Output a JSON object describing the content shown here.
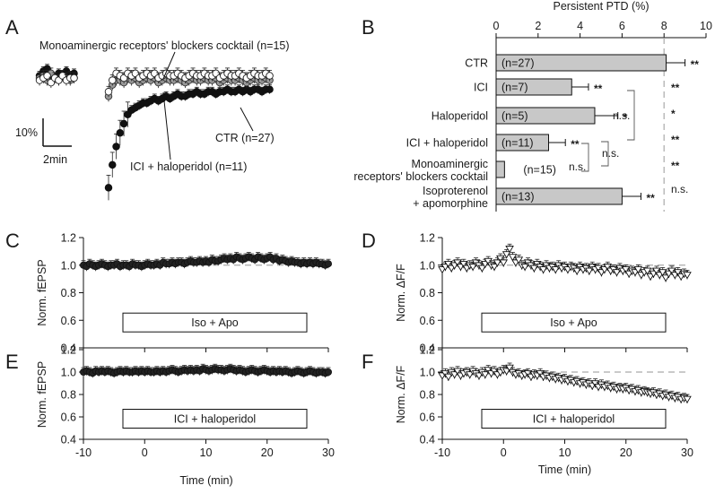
{
  "panel_letters": [
    "A",
    "B",
    "C",
    "D",
    "E",
    "F"
  ],
  "panel_a": {
    "legend_mono": "Monoaminergic receptors' blockers cocktail (n=15)",
    "legend_ici": "ICI + haloperidol (n=11)",
    "legend_ctr": "CTR (n=27)",
    "scale_y": "10%",
    "scale_x": "2min"
  },
  "colors": {
    "bar_fill": "#c8c8c8",
    "ctr_marker": "#111111",
    "ici_marker": "#9a9a9a",
    "mono_marker": "#ffffff",
    "baseline_dash": "#aaaaaa"
  },
  "chart_data": [
    {
      "panel": "A",
      "type": "scatter",
      "xlabel": "",
      "ylabel": "",
      "series": [
        {
          "name": "CTR (n=27)",
          "marker": "filled-circle",
          "x": [
            -10,
            -9.5,
            -9,
            -8.5,
            -8,
            -7.5,
            -7,
            -6.5,
            -6,
            -5.5,
            -1,
            -0.5,
            0,
            0.5,
            1,
            1.5,
            2,
            2.5,
            3,
            3.5,
            4,
            4.5,
            5,
            5.5,
            6,
            6.5,
            7,
            7.5,
            8,
            8.5,
            9,
            9.5,
            10,
            10.5,
            11,
            11.5,
            12,
            12.5,
            13,
            13.5,
            14,
            14.5,
            15,
            15.5,
            16,
            16.5,
            17,
            17.5,
            18,
            18.5,
            19,
            19.5,
            20
          ],
          "y": [
            101,
            103,
            104,
            101,
            100,
            102,
            101,
            103,
            101,
            102,
            52,
            62,
            70,
            76,
            80,
            84,
            86,
            87,
            88,
            89,
            89,
            90,
            91,
            90,
            91,
            92,
            91,
            92,
            93,
            92,
            92,
            93,
            93,
            94,
            93,
            93,
            94,
            94,
            93,
            94,
            94,
            95,
            94,
            94,
            95,
            94,
            95,
            94,
            95,
            95,
            94,
            95,
            95
          ]
        },
        {
          "name": "ICI + haloperidol (n=11)",
          "marker": "grey-circle",
          "x": [
            -10,
            -9.5,
            -9,
            -8.5,
            -8,
            -7.5,
            -7,
            -6.5,
            -6,
            -5.5,
            -1,
            -0.5,
            0,
            0.5,
            1,
            1.5,
            2,
            2.5,
            3,
            3.5,
            4,
            4.5,
            5,
            5.5,
            6,
            6.5,
            7,
            7.5,
            8,
            8.5,
            9,
            9.5,
            10,
            10.5,
            11,
            11.5,
            12,
            12.5,
            13,
            13.5,
            14,
            14.5,
            15,
            15.5,
            16,
            16.5,
            17,
            17.5,
            18,
            18.5,
            19,
            19.5,
            20
          ],
          "y": [
            100,
            101,
            99,
            102,
            100,
            99,
            101,
            100,
            99,
            100,
            92,
            97,
            99,
            99,
            98,
            100,
            99,
            100,
            98,
            99,
            100,
            99,
            100,
            98,
            99,
            100,
            99,
            99,
            100,
            99,
            98,
            99,
            100,
            99,
            99,
            100,
            99,
            99,
            100,
            98,
            99,
            100,
            99,
            99,
            100,
            99,
            98,
            99,
            100,
            99,
            99,
            100,
            99
          ]
        },
        {
          "name": "Monoaminergic receptors' blockers cocktail (n=15)",
          "marker": "open-circle",
          "x": [
            -10,
            -9.5,
            -9,
            -8.5,
            -8,
            -7.5,
            -7,
            -6.5,
            -6,
            -5.5,
            -1,
            -0.5,
            0,
            0.5,
            1,
            1.5,
            2,
            2.5,
            3,
            3.5,
            4,
            4.5,
            5,
            5.5,
            6,
            6.5,
            7,
            7.5,
            8,
            8.5,
            9,
            9.5,
            10,
            10.5,
            11,
            11.5,
            12,
            12.5,
            13,
            13.5,
            14,
            14.5,
            15,
            15.5,
            16,
            16.5,
            17,
            17.5,
            18,
            18.5,
            19,
            19.5,
            20
          ],
          "y": [
            99,
            100,
            101,
            98,
            100,
            99,
            101,
            99,
            100,
            100,
            94,
            99,
            102,
            101,
            100,
            102,
            101,
            102,
            100,
            101,
            102,
            101,
            102,
            100,
            101,
            102,
            101,
            101,
            102,
            101,
            100,
            101,
            102,
            101,
            101,
            102,
            101,
            101,
            102,
            100,
            101,
            102,
            101,
            101,
            102,
            101,
            100,
            101,
            102,
            101,
            101,
            102,
            101
          ]
        }
      ]
    },
    {
      "panel": "B",
      "type": "bar",
      "orientation": "horizontal",
      "title": "Persistent PTD (%)",
      "xlim": [
        0,
        10
      ],
      "ticks": [
        "0",
        "2",
        "4",
        "6",
        "8",
        "10"
      ],
      "reference_line": 8,
      "categories": [
        "CTR",
        "ICI",
        "Haloperidol",
        "ICI + haloperidol",
        "Monoaminergic receptors' blockers cocktail",
        "Isoproterenol + apomorphine"
      ],
      "category_lines": [
        [
          "CTR"
        ],
        [
          "ICI"
        ],
        [
          "Haloperidol"
        ],
        [
          "ICI + haloperidol"
        ],
        [
          "Monoaminergic",
          "receptors' blockers cocktail"
        ],
        [
          "Isoproterenol",
          "+ apomorphine"
        ]
      ],
      "values": [
        8.1,
        3.6,
        4.7,
        2.5,
        0.4,
        6.0
      ],
      "errors": [
        0.9,
        0.8,
        1.1,
        0.8,
        0.0,
        0.9
      ],
      "n_labels": [
        "(n=27)",
        "(n=7)",
        "(n=5)",
        "(n=11)",
        "(n=15)",
        "(n=13)"
      ],
      "bar_significance": [
        "**",
        "**",
        "*",
        "**",
        "",
        "**"
      ],
      "right_significance": [
        "**",
        "*",
        "**",
        "**",
        "n.s."
      ],
      "bracket_labels": [
        "n.s.",
        "n.s.",
        "n.s."
      ]
    },
    {
      "panel": "C",
      "type": "scatter",
      "ylabel": "Norm. fEPSP",
      "xlim": [
        -10,
        30
      ],
      "ylim": [
        0.4,
        1.2
      ],
      "yticks": [
        "0.4",
        "0.6",
        "0.8",
        "1.0",
        "1.2"
      ],
      "box_label": "Iso + Apo",
      "x_start": -10,
      "x_step": 0.5,
      "values": [
        1.0,
        0.99,
        1.01,
        1.0,
        0.99,
        1.0,
        1.01,
        1.0,
        0.99,
        1.0,
        1.0,
        1.01,
        0.99,
        1.0,
        1.0,
        0.99,
        1.01,
        1.0,
        1.0,
        0.99,
        1.0,
        1.01,
        1.0,
        1.0,
        1.01,
        1.0,
        1.02,
        1.01,
        1.01,
        1.02,
        1.01,
        1.02,
        1.02,
        1.01,
        1.02,
        1.03,
        1.02,
        1.02,
        1.03,
        1.02,
        1.03,
        1.02,
        1.04,
        1.03,
        1.03,
        1.04,
        1.05,
        1.04,
        1.05,
        1.04,
        1.06,
        1.05,
        1.04,
        1.05,
        1.06,
        1.05,
        1.04,
        1.06,
        1.05,
        1.04,
        1.05,
        1.06,
        1.04,
        1.05,
        1.03,
        1.04,
        1.03,
        1.02,
        1.03,
        1.02,
        1.02,
        1.01,
        1.02,
        1.01,
        1.02,
        1.01,
        1.02,
        1.01,
        1.01,
        1.0,
        1.01
      ]
    },
    {
      "panel": "D",
      "type": "scatter",
      "ylabel": "Norm. ΔF/F",
      "xlim": [
        -10,
        30
      ],
      "ylim": [
        0.4,
        1.2
      ],
      "yticks": [
        "0.4",
        "0.6",
        "0.8",
        "1.0",
        "1.2"
      ],
      "box_label": "Iso + Apo",
      "x_start": -10,
      "x_step": 0.5,
      "values": [
        0.97,
        0.99,
        1.01,
        0.98,
        1.0,
        1.02,
        0.99,
        1.01,
        0.98,
        1.0,
        0.99,
        1.02,
        1.0,
        0.98,
        1.01,
        1.03,
        1.0,
        0.99,
        1.02,
        1.05,
        1.02,
        1.08,
        1.12,
        1.06,
        1.02,
        1.04,
        1.0,
        0.99,
        1.02,
        1.0,
        0.98,
        1.01,
        0.99,
        0.97,
        1.0,
        0.98,
        0.99,
        0.97,
        1.0,
        0.98,
        0.99,
        0.97,
        0.99,
        0.98,
        0.96,
        0.99,
        0.97,
        0.98,
        0.96,
        0.99,
        0.97,
        0.98,
        0.95,
        0.97,
        0.99,
        0.96,
        0.97,
        0.95,
        0.98,
        0.96,
        0.97,
        0.94,
        0.96,
        0.95,
        0.97,
        0.93,
        0.95,
        0.96,
        0.92,
        0.94,
        0.96,
        0.93,
        0.95,
        0.91,
        0.94,
        0.96,
        0.93,
        0.95,
        0.92,
        0.94,
        0.93
      ]
    },
    {
      "panel": "E",
      "type": "scatter",
      "ylabel": "Norm. fEPSP",
      "xlim": [
        -10,
        30
      ],
      "ylim": [
        0.4,
        1.2
      ],
      "yticks": [
        "0.4",
        "0.6",
        "0.8",
        "1.0",
        "1.2"
      ],
      "box_label": "ICI + haloperidol",
      "x_start": -10,
      "x_step": 0.5,
      "values": [
        1.0,
        1.01,
        1.0,
        0.99,
        1.01,
        1.0,
        1.01,
        1.0,
        1.01,
        1.0,
        0.99,
        1.0,
        1.01,
        1.0,
        1.01,
        1.0,
        1.0,
        1.01,
        1.0,
        1.01,
        1.0,
        1.01,
        1.0,
        1.0,
        1.01,
        1.0,
        1.01,
        1.0,
        1.01,
        1.02,
        1.01,
        1.0,
        1.01,
        1.02,
        1.01,
        1.02,
        1.01,
        1.02,
        1.01,
        1.03,
        1.02,
        1.01,
        1.02,
        1.03,
        1.02,
        1.02,
        1.01,
        1.02,
        1.03,
        1.02,
        1.01,
        1.02,
        1.01,
        1.0,
        1.01,
        1.02,
        1.01,
        1.0,
        1.01,
        1.02,
        1.01,
        1.0,
        1.01,
        1.0,
        1.01,
        1.0,
        1.01,
        1.0,
        0.99,
        1.0,
        1.01,
        1.0,
        0.99,
        1.0,
        1.01,
        1.0,
        0.99,
        1.0,
        1.0,
        0.99,
        1.0
      ]
    },
    {
      "panel": "F",
      "type": "scatter",
      "ylabel": "Norm. ΔF/F",
      "xlabel": "Time (min)",
      "xlim": [
        -10,
        30
      ],
      "ylim": [
        0.4,
        1.2
      ],
      "xticks": [
        "-10",
        "0",
        "10",
        "20",
        "30"
      ],
      "yticks": [
        "0.4",
        "0.6",
        "0.8",
        "1.0",
        "1.2"
      ],
      "box_label": "ICI + haloperidol",
      "x_start": -10,
      "x_step": 0.5,
      "values": [
        0.97,
        0.99,
        0.96,
        1.0,
        0.98,
        1.01,
        0.97,
        0.99,
        1.0,
        0.98,
        1.01,
        0.99,
        0.97,
        1.0,
        0.98,
        1.02,
        0.99,
        1.01,
        0.98,
        1.0,
        1.02,
        1.01,
        1.04,
        1.0,
        0.98,
        0.99,
        0.97,
        0.98,
        0.99,
        0.96,
        0.98,
        0.97,
        0.99,
        0.96,
        0.97,
        0.95,
        0.96,
        0.94,
        0.95,
        0.93,
        0.94,
        0.92,
        0.93,
        0.91,
        0.92,
        0.9,
        0.91,
        0.89,
        0.9,
        0.88,
        0.9,
        0.87,
        0.89,
        0.87,
        0.88,
        0.86,
        0.87,
        0.85,
        0.86,
        0.85,
        0.86,
        0.84,
        0.85,
        0.83,
        0.84,
        0.82,
        0.83,
        0.82,
        0.81,
        0.82,
        0.8,
        0.81,
        0.79,
        0.8,
        0.78,
        0.79,
        0.77,
        0.78,
        0.76,
        0.77,
        0.76
      ]
    }
  ],
  "c_xlabel": "Time (min)",
  "c_xticks": [
    "-10",
    "0",
    "10",
    "20",
    "30"
  ]
}
